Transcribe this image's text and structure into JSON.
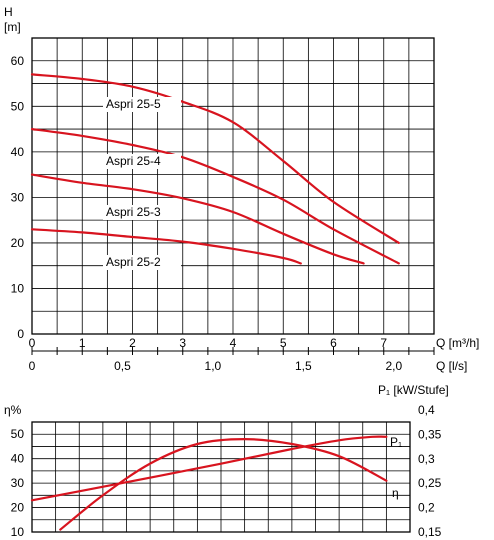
{
  "chart_data": [
    {
      "type": "line",
      "ylabel": "H",
      "yunit": "[m]",
      "xlabel_primary": "Q [m³/h]",
      "xlabel_secondary": "Q [l/s]",
      "xlim": [
        0,
        8
      ],
      "ylim": [
        0,
        65
      ],
      "xticks_primary": [
        "0",
        "1",
        "2",
        "3",
        "4",
        "5",
        "6",
        "7"
      ],
      "xticks_secondary": [
        "0",
        "0,5",
        "1,0",
        "1,5",
        "2,0"
      ],
      "yticks": [
        "0",
        "10",
        "20",
        "30",
        "40",
        "50",
        "60"
      ],
      "grid": true,
      "series": [
        {
          "name": "Aspri 25-5",
          "color": "#d8141f",
          "points": [
            [
              0,
              57
            ],
            [
              1,
              56
            ],
            [
              2,
              54.3
            ],
            [
              3,
              51
            ],
            [
              4,
              46.5
            ],
            [
              5,
              38
            ],
            [
              6,
              29
            ],
            [
              7.3,
              20
            ]
          ]
        },
        {
          "name": "Aspri 25-4",
          "color": "#d8141f",
          "points": [
            [
              0,
              45
            ],
            [
              1,
              43.5
            ],
            [
              2,
              41.5
            ],
            [
              3,
              38.8
            ],
            [
              4,
              34.5
            ],
            [
              5,
              29.5
            ],
            [
              6,
              23
            ],
            [
              7.3,
              15.5
            ]
          ]
        },
        {
          "name": "Aspri 25-3",
          "color": "#d8141f",
          "points": [
            [
              0,
              35
            ],
            [
              1,
              33.2
            ],
            [
              2,
              31.8
            ],
            [
              3,
              29.8
            ],
            [
              4,
              26.8
            ],
            [
              5,
              22
            ],
            [
              6,
              17.5
            ],
            [
              6.6,
              15.5
            ]
          ]
        },
        {
          "name": "Aspri 25-2",
          "color": "#d8141f",
          "points": [
            [
              0,
              23
            ],
            [
              1,
              22.3
            ],
            [
              2,
              21.3
            ],
            [
              3,
              20.3
            ],
            [
              4,
              18.7
            ],
            [
              5,
              16.7
            ],
            [
              5.35,
              15.5
            ]
          ]
        }
      ]
    },
    {
      "type": "line",
      "ylabel_left": "η%",
      "ylabel_right": "P₁ [kW/Stufe]",
      "xlim": [
        0,
        8
      ],
      "ylim_left": [
        10,
        55
      ],
      "ylim_right": [
        0.15,
        0.4
      ],
      "yticks_left": [
        "10",
        "20",
        "30",
        "40",
        "50"
      ],
      "yticks_right": [
        "0,15",
        "0,2",
        "0,25",
        "0,3",
        "0,35",
        "0,4"
      ],
      "grid": true,
      "series": [
        {
          "name": "P₁",
          "axis": "right",
          "color": "#d8141f",
          "points": [
            [
              0,
              0.215
            ],
            [
              2,
              0.252
            ],
            [
              4,
              0.29
            ],
            [
              5.5,
              0.32
            ],
            [
              6.5,
              0.338
            ],
            [
              7.2,
              0.345
            ],
            [
              7.5,
              0.345
            ]
          ]
        },
        {
          "name": "η",
          "axis": "left",
          "color": "#d8141f",
          "points": [
            [
              0.6,
              11
            ],
            [
              1.5,
              25
            ],
            [
              2.5,
              38
            ],
            [
              3.5,
              46
            ],
            [
              4.5,
              48
            ],
            [
              5.5,
              46
            ],
            [
              6.5,
              41
            ],
            [
              7.5,
              31
            ]
          ]
        }
      ]
    }
  ]
}
